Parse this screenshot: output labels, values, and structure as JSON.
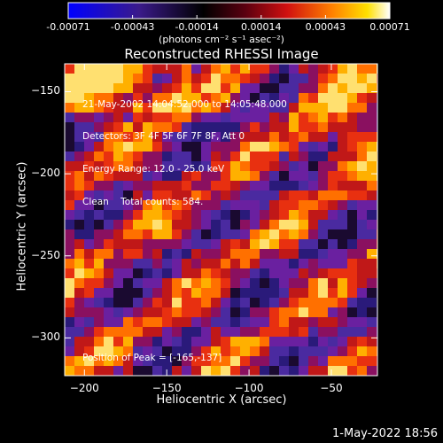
{
  "colorbar": {
    "tick_labels": [
      "-0.00071",
      "-0.00043",
      "-0.00014",
      "0.00014",
      "0.00043",
      "0.00071"
    ],
    "units": "(photons cm⁻² s⁻¹ asec⁻²)"
  },
  "info": {
    "line1": "21-May-2002 14:04:52.000 to 14:05:48.000",
    "line2": "Detectors: 3F 4F 5F 6F 7F 8F, Att 0",
    "line3": "Energy Range: 12.0 - 25.0 keV",
    "line4": "Clean    Total counts: 584.",
    "peak": "Position of Peak = [-165,-137]"
  },
  "timestamp": "1-May-2022 18:56",
  "chart_data": {
    "type": "heatmap",
    "title": "Reconstructed RHESSI Image",
    "xlabel": "Heliocentric X (arcsec)",
    "ylabel": "Heliocentric Y (arcsec)",
    "xlim": [
      -212,
      -22
    ],
    "ylim": [
      -323,
      -133
    ],
    "x_ticks": [
      -200,
      -150,
      -100,
      -50
    ],
    "y_ticks": [
      -300,
      -250,
      -200,
      -150
    ],
    "colorbar_range": [
      -0.00071,
      0.00071
    ],
    "colormap": "black-blue-purple-red-orange-yellow-white",
    "peak_position": [
      -165,
      -137
    ]
  }
}
